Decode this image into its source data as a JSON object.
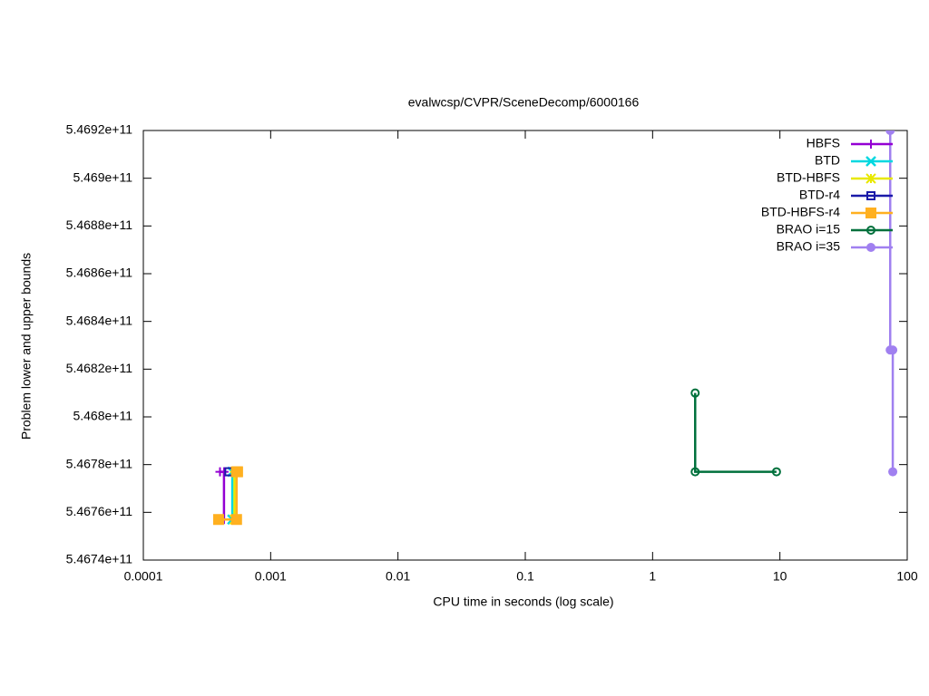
{
  "chart_data": {
    "type": "line",
    "title": "evalwcsp/CVPR/SceneDecomp/6000166",
    "x_label": "CPU time in seconds (log scale)",
    "y_label": "Problem lower and upper bounds",
    "x_log_scale": true,
    "xlim": [
      0.0001,
      100
    ],
    "xticks": [
      0.0001,
      0.001,
      0.01,
      0.1,
      1,
      10,
      100
    ],
    "ylim": [
      546740000000,
      546920000000
    ],
    "yticks": [
      {
        "value": 546740000000,
        "label": "5.4674e+11"
      },
      {
        "value": 546760000000,
        "label": "5.4676e+11"
      },
      {
        "value": 546780000000,
        "label": "5.4678e+11"
      },
      {
        "value": 546800000000,
        "label": "5.468e+11"
      },
      {
        "value": 546820000000,
        "label": "5.4682e+11"
      },
      {
        "value": 546840000000,
        "label": "5.4684e+11"
      },
      {
        "value": 546860000000,
        "label": "5.4686e+11"
      },
      {
        "value": 546880000000,
        "label": "5.4688e+11"
      },
      {
        "value": 546900000000,
        "label": "5.469e+11"
      },
      {
        "value": 546920000000,
        "label": "5.4692e+11"
      }
    ],
    "legend_position": "top-right",
    "series": [
      {
        "name": "HBFS",
        "color": "#9400d3",
        "marker": "plus",
        "x": [
          0.0004,
          0.00043,
          0.00043
        ],
        "values": [
          546777000000,
          546777000000,
          546757000000
        ]
      },
      {
        "name": "BTD",
        "color": "#00d8e0",
        "marker": "cross",
        "x": [
          0.0005,
          0.0005
        ],
        "values": [
          546777000000,
          546757000000
        ]
      },
      {
        "name": "BTD-HBFS",
        "color": "#e8e800",
        "marker": "star",
        "x": [
          0.00052,
          0.00052
        ],
        "values": [
          546777000000,
          546757000000
        ]
      },
      {
        "name": "BTD-r4",
        "color": "#1a1aa8",
        "marker": "square-open",
        "x": [
          0.00047
        ],
        "values": [
          546777000000
        ]
      },
      {
        "name": "BTD-HBFS-r4",
        "color": "#ffb020",
        "marker": "square-filled",
        "x": [
          0.00055,
          0.00054,
          0.00054,
          0.00039
        ],
        "values": [
          546777000000,
          546777000000,
          546757000000,
          546757000000
        ]
      },
      {
        "name": "BRAO i=15",
        "color": "#00703c",
        "marker": "circle-open",
        "x": [
          2.16,
          2.16,
          9.4
        ],
        "values": [
          546810000000,
          546777000000,
          546777000000
        ]
      },
      {
        "name": "BRAO i=35",
        "color": "#a080f0",
        "marker": "circle-filled",
        "x": [
          73.5,
          73.5,
          77,
          77
        ],
        "values": [
          546920000000,
          546828000000,
          546828000000,
          546777000000
        ]
      }
    ]
  }
}
